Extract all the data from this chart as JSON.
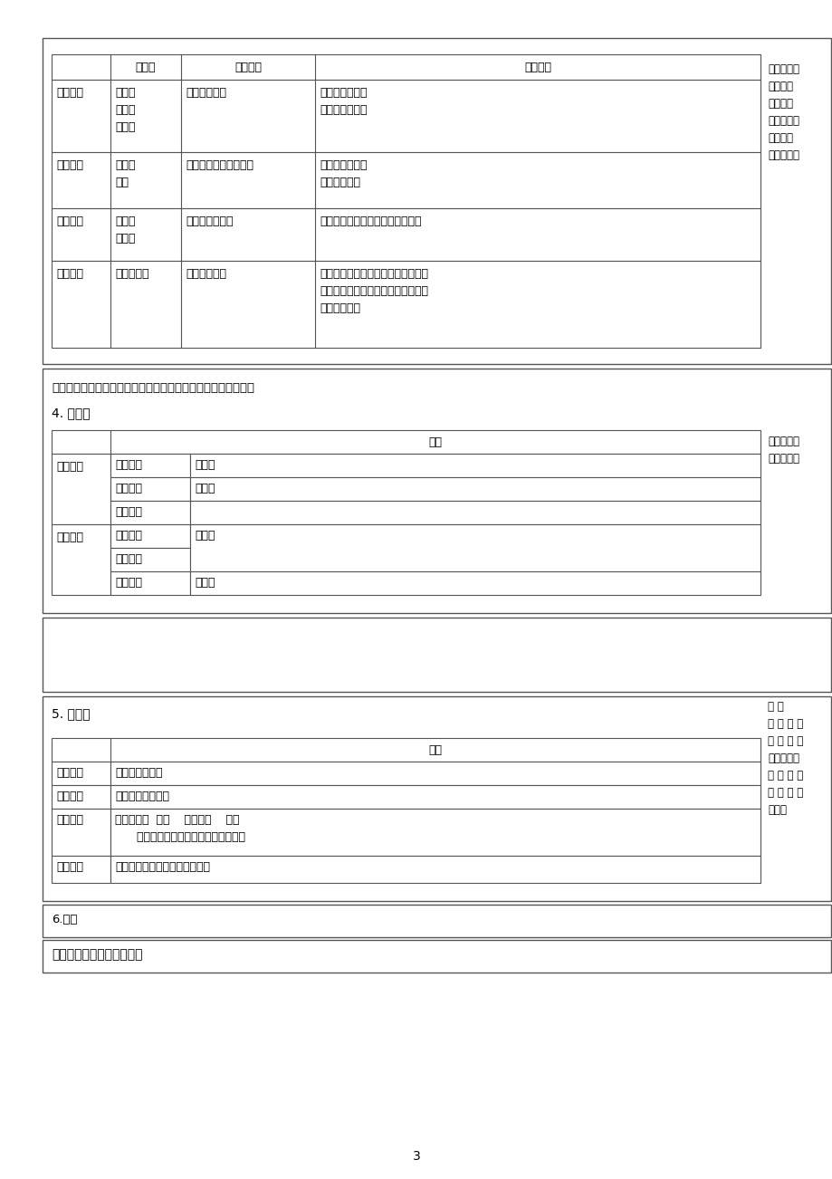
{
  "bg_color": "#ffffff",
  "text_color": "#000000",
  "border_color": "#555555",
  "page_number": "3",
  "section1": {
    "header": [
      "",
      "温度带",
      "气候类型",
      "气候特征"
    ],
    "rows": [
      {
        "region": "北方地区",
        "temp_zone": "暖温带\n中温带\n寒温带",
        "climate_type": "温带季风气候",
        "climate_feature": "夏季高温多雨，\n冬季寒冷干燥。"
      },
      {
        "region": "南方地区",
        "temp_zone": "亚热带\n热带",
        "climate_type": "亚热带、热带季风气候",
        "climate_feature": "夏季高温多雨，\n冬季温暖湿润"
      },
      {
        "region": "西北地区",
        "temp_zone": "暖温带\n中温带",
        "climate_type": "温带大陆性气候",
        "climate_feature": "夏季炎热，冬季寒冷，降水较少。"
      },
      {
        "region": "青藏地区",
        "temp_zone": "高原气候区",
        "climate_type": "高原山地气候",
        "climate_feature": "冬寒夏凉，年温差小，日温差大。由\n于海拔高，空气稀薄，日照充足，太\n阳辐射强烈。"
      }
    ],
    "right_note": "比较、归纳\n四大地理\n区域所属\n温度带、气\n候类型及\n气候特征。"
  },
  "prompt": "【提问】南方地区和北方地区的土壤颜色及肂沃程度有何不同？",
  "section2": {
    "title": "4. 土壤：",
    "north_sub": [
      "东北平原",
      "华北平原",
      "黄土高原"
    ],
    "north_soil": [
      "黑土地",
      "黄土地",
      ""
    ],
    "south_sub1": [
      "东南丘陵",
      "云贵高原"
    ],
    "south_soil1": "红土地",
    "south_sub2": "四川盆地",
    "south_soil2": "紫土地",
    "right_note": "根据提问，\n直接总结。"
  },
  "section3": {
    "title": "5. 景观：",
    "rows": [
      {
        "region": "北方地区",
        "content": "温带落叶阔叶林"
      },
      {
        "region": "南方地区",
        "content": "亚热带常綣阔叶林"
      },
      {
        "region": "西北地区",
        "content": "自东向西：  草原    荒漠草原    荒漠\n      （西部盆地中有大面积的沙漠分布）"
      },
      {
        "region": "青藏地区",
        "content": "许多山峰终年积雪、冰川广布。"
      }
    ],
    "right_note": "展 示\n四 大 地 理\n区 域 的 景\n观图，让学\n生 根 据 景\n观 图 直 接\n总结。"
  },
  "section4_title": "6.其他",
  "section5_title": "二、四大地理区域的农业。"
}
